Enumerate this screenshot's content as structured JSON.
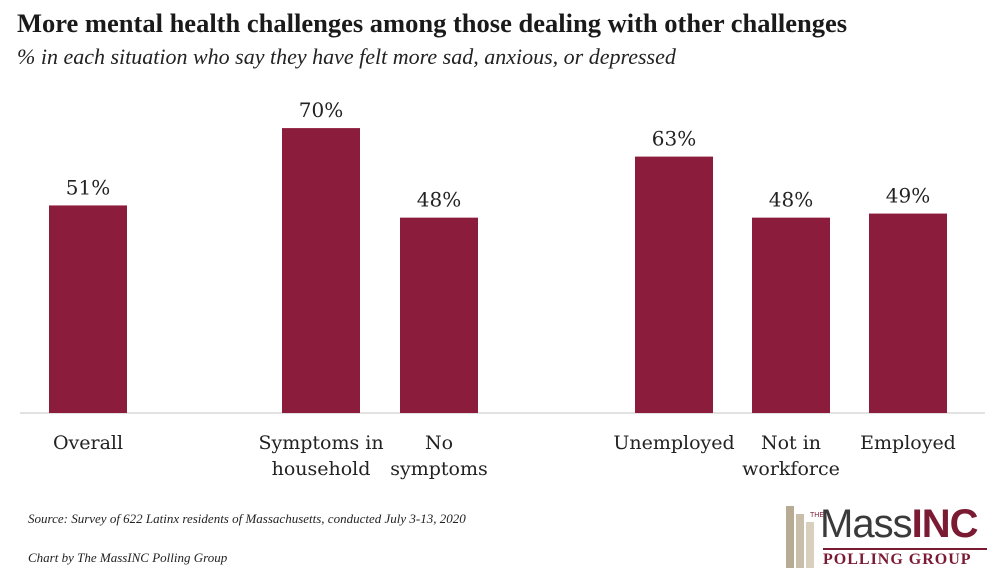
{
  "chart_data": {
    "type": "bar",
    "title": "More mental health challenges among those dealing with other challenges",
    "subtitle": "% in each situation who say they have felt more sad, anxious, or depressed",
    "categories": [
      [
        "Overall"
      ],
      [
        "Symptoms in",
        "household"
      ],
      [
        "No",
        "symptoms"
      ],
      [
        "Unemployed"
      ],
      [
        "Not in",
        "workforce"
      ],
      [
        "Employed"
      ]
    ],
    "values": [
      51,
      70,
      48,
      63,
      48,
      49
    ],
    "value_labels": [
      "51%",
      "70%",
      "48%",
      "63%",
      "48%",
      "49%"
    ],
    "groups": [
      0,
      1,
      1,
      2,
      2,
      2
    ],
    "ylim": [
      0,
      100
    ],
    "xlabel": "",
    "ylabel": "",
    "bar_color": "#8b1c3b",
    "axis_color": "#d9d9d9"
  },
  "footer": {
    "source": "Source: Survey of 622 Latinx residents of Massachusetts, conducted July 3-13, 2020",
    "credit": "Chart by The MassINC Polling Group"
  },
  "logo": {
    "the": "THE",
    "mass": "Mass",
    "inc": "INC",
    "polling_group": "POLLING GROUP",
    "brand_color": "#7a1a33"
  }
}
